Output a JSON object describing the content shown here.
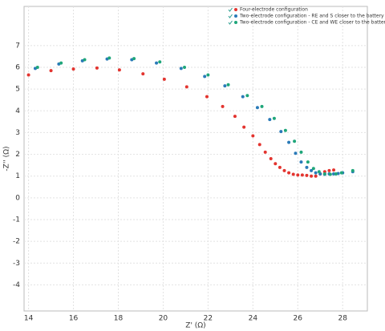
{
  "chart_data": {
    "type": "scatter",
    "xlabel": "Z' (Ω)",
    "ylabel": "-Z'' (Ω)",
    "xlim": [
      13.8,
      29.1
    ],
    "ylim": [
      -5.2,
      8.8
    ],
    "xticks": [
      14,
      16,
      18,
      20,
      22,
      24,
      26,
      28
    ],
    "yticks": [
      -4,
      -3,
      -2,
      -1,
      0,
      1,
      2,
      3,
      4,
      5,
      6,
      7
    ],
    "grid": true,
    "legend": "upper right",
    "series": [
      {
        "name": "Four-electrode configuration",
        "color": "#e3342f",
        "x": [
          14,
          15,
          16,
          17.05,
          18.05,
          19.1,
          20.05,
          21.05,
          21.95,
          22.65,
          23.2,
          23.6,
          24.0,
          24.3,
          24.55,
          24.8,
          25.0,
          25.2,
          25.4,
          25.6,
          25.8,
          26.0,
          26.2,
          26.4,
          26.6,
          26.8,
          27.0,
          27.2,
          27.4,
          27.6
        ],
        "values": [
          5.65,
          5.85,
          5.92,
          5.97,
          5.88,
          5.7,
          5.45,
          5.1,
          4.65,
          4.2,
          3.75,
          3.25,
          2.85,
          2.45,
          2.1,
          1.8,
          1.57,
          1.4,
          1.25,
          1.15,
          1.08,
          1.05,
          1.05,
          1.03,
          1.0,
          1.0,
          1.1,
          1.2,
          1.25,
          1.28
        ]
      },
      {
        "name": "Two-electrode configuration - RE and S closer to the battery",
        "color": "#2a7ab8",
        "x": [
          14.3,
          15.35,
          16.4,
          17.5,
          18.6,
          19.7,
          20.8,
          21.85,
          22.75,
          23.55,
          24.2,
          24.75,
          25.25,
          25.6,
          25.9,
          26.15,
          26.4,
          26.6,
          26.8,
          27.0,
          27.2,
          27.4,
          27.6,
          27.8,
          28.0,
          28.45
        ],
        "values": [
          5.95,
          6.15,
          6.3,
          6.38,
          6.35,
          6.2,
          5.95,
          5.58,
          5.15,
          4.65,
          4.15,
          3.6,
          3.05,
          2.55,
          2.05,
          1.65,
          1.4,
          1.25,
          1.15,
          1.1,
          1.08,
          1.1,
          1.1,
          1.12,
          1.15,
          1.2
        ]
      },
      {
        "name": "Two-electrode configuration - CE and WE closer to the battery",
        "color": "#1fa67a",
        "x": [
          14.4,
          15.45,
          16.5,
          17.6,
          18.7,
          19.85,
          20.95,
          22.0,
          22.9,
          23.75,
          24.4,
          24.95,
          25.45,
          25.85,
          26.15,
          26.45,
          26.7,
          26.95,
          27.2,
          27.45,
          27.7,
          27.95,
          28.45
        ],
        "values": [
          6.0,
          6.2,
          6.35,
          6.43,
          6.4,
          6.25,
          6.0,
          5.65,
          5.2,
          4.7,
          4.2,
          3.65,
          3.1,
          2.6,
          2.1,
          1.65,
          1.35,
          1.2,
          1.1,
          1.08,
          1.1,
          1.15,
          1.25
        ]
      }
    ]
  }
}
